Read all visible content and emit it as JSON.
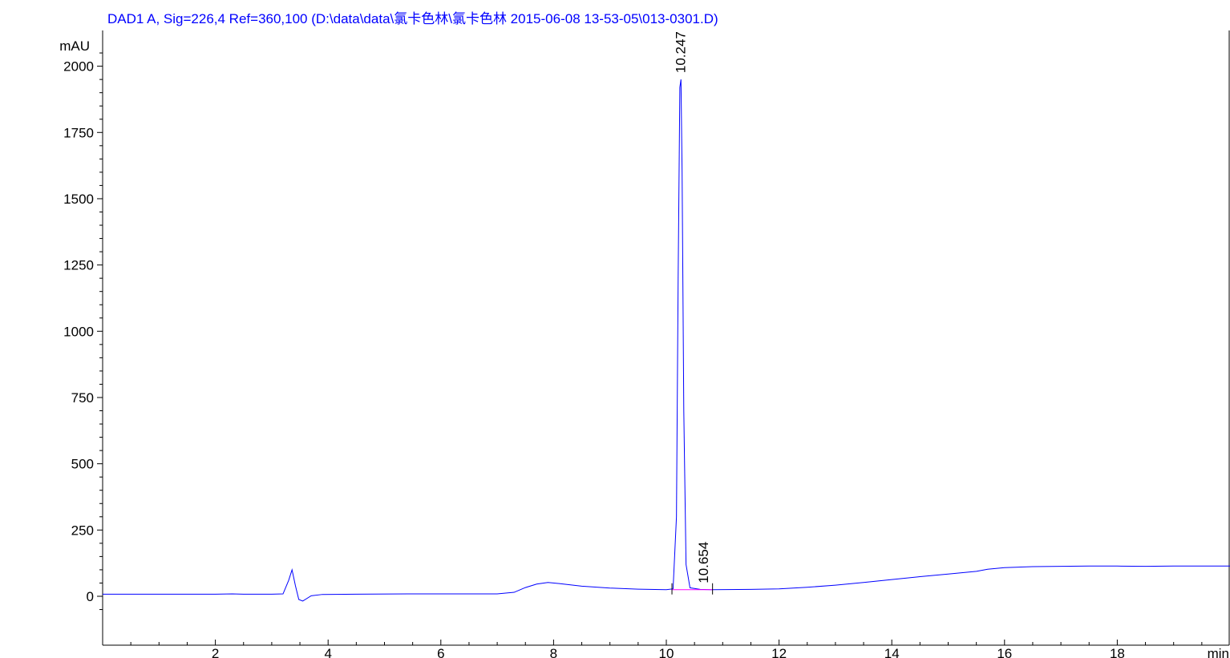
{
  "chart_data": {
    "type": "line",
    "title": "DAD1 A, Sig=226,4 Ref=360,100 (D:\\data\\data\\氯卡色林\\氯卡色林 2015-06-08 13-53-05\\013-0301.D)",
    "xlabel": "min",
    "ylabel": "mAU",
    "xlim": [
      0,
      20
    ],
    "ylim": [
      -65,
      2060
    ],
    "x_ticks": [
      2,
      4,
      6,
      8,
      10,
      12,
      14,
      16,
      18
    ],
    "y_ticks": [
      0,
      250,
      500,
      750,
      1000,
      1250,
      1500,
      1750,
      2000
    ],
    "peaks": [
      {
        "label": "10.247",
        "rt": 10.247,
        "height": 1950
      },
      {
        "label": "10.654",
        "rt": 10.654,
        "height": 25
      }
    ],
    "baseline": {
      "from": 10.1,
      "to": 10.82,
      "y": 25
    },
    "series": [
      {
        "color": "#0000ff",
        "points": [
          [
            0,
            8
          ],
          [
            1,
            8
          ],
          [
            2,
            8
          ],
          [
            2.3,
            9
          ],
          [
            2.5,
            8
          ],
          [
            3.0,
            8
          ],
          [
            3.2,
            9
          ],
          [
            3.3,
            60
          ],
          [
            3.36,
            100
          ],
          [
            3.42,
            40
          ],
          [
            3.48,
            -12
          ],
          [
            3.55,
            -18
          ],
          [
            3.7,
            2
          ],
          [
            3.9,
            7
          ],
          [
            4.5,
            8
          ],
          [
            5.5,
            9
          ],
          [
            6.5,
            9
          ],
          [
            7.0,
            9
          ],
          [
            7.3,
            15
          ],
          [
            7.5,
            33
          ],
          [
            7.7,
            46
          ],
          [
            7.9,
            52
          ],
          [
            8.1,
            48
          ],
          [
            8.5,
            38
          ],
          [
            9.0,
            31
          ],
          [
            9.5,
            27
          ],
          [
            10.0,
            25
          ],
          [
            10.12,
            28
          ],
          [
            10.18,
            300
          ],
          [
            10.21,
            1200
          ],
          [
            10.24,
            1920
          ],
          [
            10.26,
            1950
          ],
          [
            10.28,
            1600
          ],
          [
            10.31,
            700
          ],
          [
            10.35,
            120
          ],
          [
            10.42,
            32
          ],
          [
            10.6,
            26
          ],
          [
            10.8,
            25
          ],
          [
            11.5,
            26
          ],
          [
            12.0,
            28
          ],
          [
            12.5,
            34
          ],
          [
            13.0,
            42
          ],
          [
            13.5,
            52
          ],
          [
            14.0,
            63
          ],
          [
            14.5,
            74
          ],
          [
            15.0,
            84
          ],
          [
            15.5,
            94
          ],
          [
            15.7,
            102
          ],
          [
            16.0,
            108
          ],
          [
            16.5,
            112
          ],
          [
            17.0,
            113
          ],
          [
            17.5,
            114
          ],
          [
            18.0,
            114
          ],
          [
            18.5,
            113
          ],
          [
            19.0,
            114
          ],
          [
            19.5,
            114
          ],
          [
            20.0,
            114
          ]
        ]
      },
      {
        "color": "#ff00ff",
        "points": [
          [
            10.1,
            25
          ],
          [
            10.82,
            25
          ]
        ]
      }
    ]
  }
}
